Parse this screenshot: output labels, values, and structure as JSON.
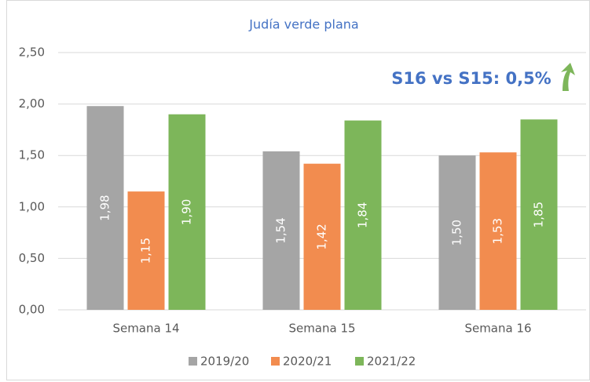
{
  "chart_data": {
    "type": "bar",
    "title": "Judía verde plana",
    "categories": [
      "Semana 14",
      "Semana 15",
      "Semana 16"
    ],
    "series": [
      {
        "name": "2019/20",
        "color": "#a5a5a5",
        "values": [
          1.98,
          1.54,
          1.5
        ],
        "value_labels": [
          "1,98",
          "1,54",
          "1,50"
        ]
      },
      {
        "name": "2020/21",
        "color": "#f28c4f",
        "values": [
          1.15,
          1.42,
          1.53
        ],
        "value_labels": [
          "1,15",
          "1,42",
          "1,53"
        ]
      },
      {
        "name": "2021/22",
        "color": "#7db65a",
        "values": [
          1.9,
          1.84,
          1.85
        ],
        "value_labels": [
          "1,90",
          "1,84",
          "1,85"
        ]
      }
    ],
    "ylim": [
      0,
      2.5
    ],
    "yticks": [
      {
        "value": 0,
        "label": "0,00"
      },
      {
        "value": 0.5,
        "label": "0,50"
      },
      {
        "value": 1,
        "label": "1,00"
      },
      {
        "value": 1.5,
        "label": "1,50"
      },
      {
        "value": 2,
        "label": "2,00"
      },
      {
        "value": 2.5,
        "label": "2,50"
      }
    ],
    "grid": true,
    "legend": "bottom",
    "annotation": "S16 vs S15: 0,5%"
  }
}
